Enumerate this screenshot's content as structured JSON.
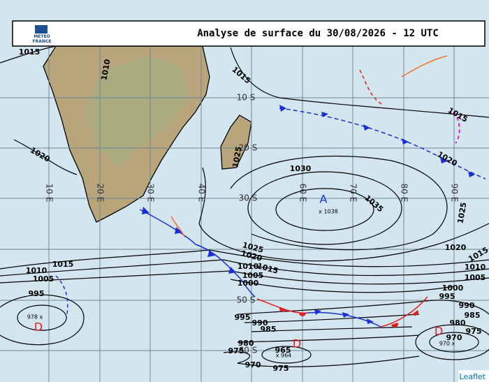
{
  "header": {
    "title": "Analyse de surface du 30/08/2026 - 12 UTC",
    "logo": [
      "METEO",
      "FRANCE"
    ]
  },
  "latitudes": [
    "10 S",
    "20 S",
    "30 S",
    "50 S",
    "60 S"
  ],
  "longitudes": [
    "10 E",
    "20 E",
    "30 E",
    "40 E",
    "60 E",
    "70 E",
    "80 E",
    "90 E"
  ],
  "isobar_labels": [
    "1015",
    "1010",
    "1020",
    "1025",
    "1015",
    "1030",
    "1035",
    "1025",
    "1020",
    "1015",
    "1020",
    "1015",
    "1025",
    "1020",
    "1015",
    "1010",
    "1005",
    "1000",
    "1015",
    "1010",
    "1005",
    "995",
    "995",
    "990",
    "985",
    "980",
    "975",
    "970",
    "965",
    "975",
    "1000",
    "995",
    "990",
    "985",
    "980",
    "975",
    "970",
    "1010",
    "1005"
  ],
  "centers": [
    {
      "letter": "A",
      "value": "x 1038"
    },
    {
      "letter": "D",
      "value": "978 x"
    },
    {
      "letter": "D",
      "value": "x 964"
    },
    {
      "letter": "D",
      "value": "970 x"
    }
  ],
  "attribution": "Leaflet"
}
